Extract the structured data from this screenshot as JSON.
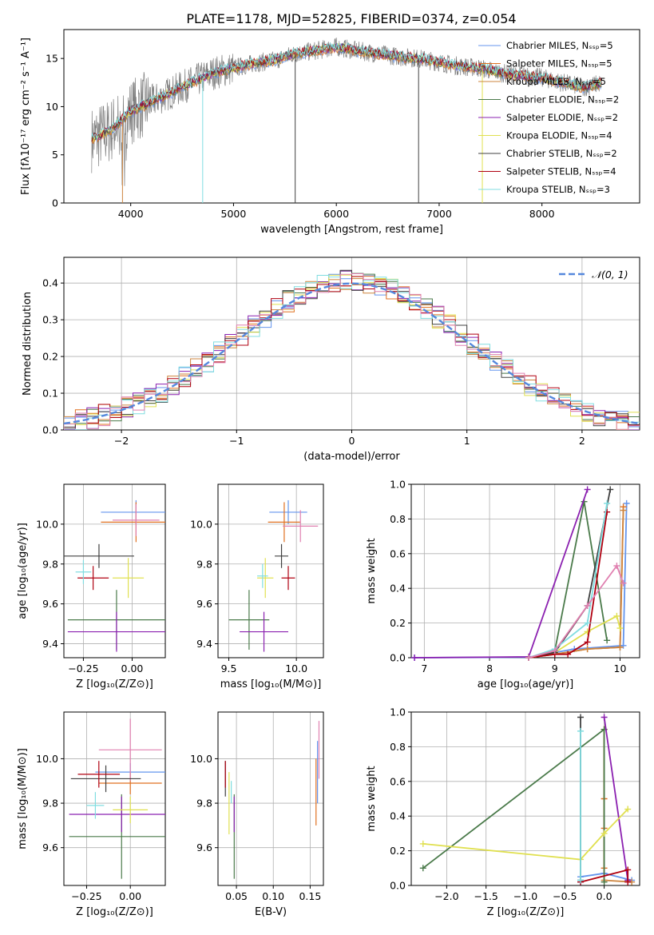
{
  "figure_title": "PLATE=1178, MJD=52825, FIBERID=0374, z=0.054",
  "colors": [
    "#6495ed",
    "#e07020",
    "#cd853f",
    "#4a7a4a",
    "#8b20b0",
    "#e0e050",
    "#404040",
    "#b00010",
    "#80dde0"
  ],
  "chart_data": [
    {
      "id": "spectrum",
      "type": "line",
      "xlabel": "wavelength [Angstrom, rest frame]",
      "ylabel": "Flux [fλ10⁻¹⁷ erg cm⁻² s⁻¹ A⁻¹]",
      "xlim": [
        3350,
        8950
      ],
      "ylim": [
        0,
        18
      ],
      "xticks": [
        4000,
        5000,
        6000,
        7000,
        8000
      ],
      "yticks": [
        0,
        5,
        10,
        15
      ],
      "grid": false,
      "legend_position": "top-right",
      "legend": [
        "Chabrier MILES, Nₛₛₚ=5",
        "Salpeter MILES, Nₛₛₚ=5",
        "Kroupa MILES, Nₛₛₚ=5",
        "Chabrier ELODIE, Nₛₛₚ=2",
        "Salpeter ELODIE, Nₛₛₚ=2",
        "Kroupa ELODIE, Nₛₛₚ=4",
        "Chabrier STELIB, Nₛₛₚ=2",
        "Salpeter STELIB, Nₛₛₚ=4",
        "Kroupa STELIB, Nₛₛₚ=3"
      ],
      "data_x": [
        3600,
        3800,
        4000,
        4200,
        4400,
        4600,
        4800,
        5000,
        5200,
        5400,
        5600,
        5800,
        6000,
        6200,
        6400,
        6600,
        6800,
        7000,
        7200,
        7400,
        7600,
        7800,
        8000,
        8200,
        8400,
        8600,
        8800
      ],
      "data_y": [
        6.5,
        7.5,
        9.5,
        10.5,
        11.5,
        12.5,
        13.5,
        14.0,
        14.5,
        14.8,
        15.5,
        15.8,
        16.2,
        15.8,
        15.5,
        15.2,
        15.0,
        14.6,
        14.2,
        14.0,
        13.5,
        13.2,
        13.0,
        12.5,
        12.0,
        12.5,
        11.5
      ],
      "dips": [
        [
          4700,
          0
        ],
        [
          5600,
          0
        ],
        [
          6800,
          0
        ],
        [
          7420,
          0
        ],
        [
          3920,
          0
        ]
      ]
    },
    {
      "id": "residuals",
      "type": "bar",
      "xlabel": "(data-model)/error",
      "ylabel": "Normed distribution",
      "xlim": [
        -2.5,
        2.5
      ],
      "ylim": [
        0,
        0.47
      ],
      "xticks": [
        -2,
        -1,
        0,
        1,
        2
      ],
      "yticks": [
        0.0,
        0.1,
        0.2,
        0.3,
        0.4
      ],
      "grid": true,
      "legend_position": "top-right",
      "legend": [
        "𝒩(0, 1)"
      ],
      "bin_edges_start": -2.5,
      "bin_width": 0.1
    },
    {
      "id": "age_vs_Z",
      "type": "scatter",
      "xlabel": "Z [log₁₀(Z/Z⊙)]",
      "ylabel": "age  [log₁₀(age/yr)]",
      "xlim": [
        -0.35,
        0.17
      ],
      "ylim": [
        9.33,
        10.2
      ],
      "xticks": [
        -0.25,
        0.0
      ],
      "yticks": [
        9.4,
        9.6,
        9.8,
        10.0
      ],
      "grid": true,
      "points": [
        {
          "x": 0.02,
          "y": 10.06,
          "xerr": 0.18,
          "yerr": 0.06
        },
        {
          "x": 0.02,
          "y": 10.01,
          "xerr": 0.18,
          "yerr": 0.1
        },
        {
          "x": 0.02,
          "y": 10.02,
          "xerr": 0.12,
          "yerr": 0.08
        },
        {
          "x": -0.08,
          "y": 9.52,
          "xerr": 0.25,
          "yerr": 0.15
        },
        {
          "x": -0.08,
          "y": 9.46,
          "xerr": 0.25,
          "yerr": 0.1
        },
        {
          "x": -0.02,
          "y": 9.73,
          "xerr": 0.08,
          "yerr": 0.1
        },
        {
          "x": -0.17,
          "y": 9.84,
          "xerr": 0.18,
          "yerr": 0.06
        },
        {
          "x": -0.2,
          "y": 9.73,
          "xerr": 0.08,
          "yerr": 0.06
        },
        {
          "x": -0.25,
          "y": 9.76,
          "xerr": 0.04,
          "yerr": 0.06
        }
      ]
    },
    {
      "id": "age_vs_mass",
      "type": "scatter",
      "xlabel": "mass [log₁₀(M/M⊙)]",
      "ylabel": "",
      "xlim": [
        9.42,
        10.2
      ],
      "ylim": [
        9.33,
        10.2
      ],
      "xticks": [
        9.5,
        10.0
      ],
      "yticks": [
        9.4,
        9.6,
        9.8,
        10.0
      ],
      "grid": true,
      "points": [
        {
          "x": 9.94,
          "y": 10.06,
          "xerr": 0.14,
          "yerr": 0.06
        },
        {
          "x": 9.91,
          "y": 10.01,
          "xerr": 0.12,
          "yerr": 0.1
        },
        {
          "x": 10.03,
          "y": 9.99,
          "xerr": 0.13,
          "yerr": 0.08
        },
        {
          "x": 9.65,
          "y": 9.52,
          "xerr": 0.15,
          "yerr": 0.15
        },
        {
          "x": 9.76,
          "y": 9.46,
          "xerr": 0.18,
          "yerr": 0.1
        },
        {
          "x": 9.77,
          "y": 9.73,
          "xerr": 0.06,
          "yerr": 0.1
        },
        {
          "x": 9.89,
          "y": 9.84,
          "xerr": 0.05,
          "yerr": 0.06
        },
        {
          "x": 9.94,
          "y": 9.73,
          "xerr": 0.05,
          "yerr": 0.06
        },
        {
          "x": 9.75,
          "y": 9.74,
          "xerr": 0.04,
          "yerr": 0.06
        }
      ]
    },
    {
      "id": "massweight_vs_age",
      "type": "line",
      "xlabel": "age  [log₁₀(age/yr)]",
      "ylabel": "mass weight",
      "xlim": [
        6.8,
        10.3
      ],
      "ylim": [
        0,
        1.0
      ],
      "xticks": [
        7,
        8,
        9,
        10
      ],
      "yticks": [
        0.0,
        0.2,
        0.4,
        0.6,
        0.8,
        1.0
      ],
      "grid": true,
      "series": [
        {
          "x": [
            6.85,
            8.6,
            9.0,
            9.3,
            10.05,
            10.1
          ],
          "y": [
            0,
            0.003,
            0.03,
            0.05,
            0.07,
            0.89
          ]
        },
        {
          "x": [
            8.6,
            9.0,
            9.5,
            10.0,
            10.05
          ],
          "y": [
            0,
            0.02,
            0.05,
            0.06,
            0.87
          ]
        },
        {
          "x": [
            8.6,
            9.0,
            9.5,
            10.0,
            10.05
          ],
          "y": [
            0,
            0.02,
            0.05,
            0.06,
            0.85
          ]
        },
        {
          "x": [
            8.6,
            9.0,
            9.45,
            9.8
          ],
          "y": [
            0,
            0.04,
            0.9,
            0.1
          ]
        },
        {
          "x": [
            6.85,
            8.6,
            9.5
          ],
          "y": [
            0,
            0.005,
            0.97
          ]
        },
        {
          "x": [
            8.6,
            9.0,
            9.5,
            9.95,
            10.0
          ],
          "y": [
            0,
            0.03,
            0.15,
            0.24,
            0.17
          ]
        },
        {
          "x": [
            8.6,
            9.0,
            9.5,
            9.85
          ],
          "y": [
            0,
            0.03,
            0.3,
            0.97
          ]
        },
        {
          "x": [
            8.6,
            9.0,
            9.2,
            9.5,
            9.8
          ],
          "y": [
            0,
            0.02,
            0.02,
            0.09,
            0.84
          ]
        },
        {
          "x": [
            8.6,
            9.0,
            9.5,
            9.8
          ],
          "y": [
            0,
            0.05,
            0.2,
            0.89
          ]
        }
      ],
      "extra_series": {
        "x": [
          8.6,
          9.0,
          9.5,
          9.95,
          10.05
        ],
        "y": [
          0,
          0.04,
          0.3,
          0.53,
          0.43
        ]
      }
    },
    {
      "id": "mass_vs_Z",
      "type": "scatter",
      "xlabel": "Z [log₁₀(Z/Z⊙)]",
      "ylabel": "mass [log₁₀(M/M⊙)]",
      "xlim": [
        -0.38,
        0.2
      ],
      "ylim": [
        9.43,
        10.21
      ],
      "xticks": [
        -0.25,
        0.0
      ],
      "yticks": [
        9.6,
        9.8,
        10.0
      ],
      "grid": true,
      "points": [
        {
          "x": 0.0,
          "y": 9.94,
          "xerr": 0.2,
          "yerr": 0.04
        },
        {
          "x": 0.0,
          "y": 9.89,
          "xerr": 0.18,
          "yerr": 0.05
        },
        {
          "x": 0.0,
          "y": 10.04,
          "xerr": 0.18,
          "yerr": 0.14
        },
        {
          "x": -0.05,
          "y": 9.65,
          "xerr": 0.3,
          "yerr": 0.19
        },
        {
          "x": -0.05,
          "y": 9.75,
          "xerr": 0.3,
          "yerr": 0.08
        },
        {
          "x": 0.0,
          "y": 9.77,
          "xerr": 0.1,
          "yerr": 0.06
        },
        {
          "x": -0.14,
          "y": 9.91,
          "xerr": 0.2,
          "yerr": 0.06
        },
        {
          "x": -0.18,
          "y": 9.93,
          "xerr": 0.12,
          "yerr": 0.06
        },
        {
          "x": -0.2,
          "y": 9.79,
          "xerr": 0.05,
          "yerr": 0.06
        }
      ]
    },
    {
      "id": "mass_vs_ebv",
      "type": "scatter",
      "xlabel": "E(B-V)",
      "ylabel": "",
      "xlim": [
        0.025,
        0.168
      ],
      "ylim": [
        9.43,
        10.21
      ],
      "xticks": [
        0.05,
        0.1,
        0.15
      ],
      "yticks": [
        9.6,
        9.8,
        10.0
      ],
      "grid": true,
      "points": [
        {
          "x": 0.16,
          "y": 9.94,
          "xerr": 0.0,
          "yerr": 0.14
        },
        {
          "x": 0.158,
          "y": 9.85,
          "xerr": 0.0,
          "yerr": 0.15
        },
        {
          "x": 0.162,
          "y": 10.04,
          "xerr": 0.0,
          "yerr": 0.13
        },
        {
          "x": 0.047,
          "y": 9.65,
          "xerr": 0.0,
          "yerr": 0.19
        },
        {
          "x": 0.047,
          "y": 9.75,
          "xerr": 0.0,
          "yerr": 0.08
        },
        {
          "x": 0.04,
          "y": 9.8,
          "xerr": 0.0,
          "yerr": 0.14
        },
        {
          "x": 0.035,
          "y": 9.91,
          "xerr": 0.0,
          "yerr": 0.08
        },
        {
          "x": 0.035,
          "y": 9.93,
          "xerr": 0.0,
          "yerr": 0.06
        },
        {
          "x": 0.043,
          "y": 9.85,
          "xerr": 0.0,
          "yerr": 0.05
        }
      ]
    },
    {
      "id": "massweight_vs_Z",
      "type": "line",
      "xlabel": "Z [log₁₀(Z/Z⊙)]",
      "ylabel": "mass weight",
      "xlim": [
        -2.45,
        0.45
      ],
      "ylim": [
        0,
        1.0
      ],
      "xticks": [
        -2.0,
        -1.5,
        -1.0,
        -0.5,
        0.0
      ],
      "yticks": [
        0.0,
        0.2,
        0.4,
        0.6,
        0.8,
        1.0
      ],
      "grid": true,
      "series": [
        {
          "x": [
            -0.3,
            -0.3,
            0.0,
            0.35
          ],
          "y": [
            0.02,
            0.05,
            0.07,
            0.03
          ]
        },
        {
          "x": [
            0.0,
            0.0,
            0.0,
            0.0
          ],
          "y": [
            0.9,
            0.5,
            0.33,
            0.1
          ]
        },
        {
          "x": [
            0.0,
            0.0,
            0.35
          ],
          "y": [
            0.9,
            0.03,
            0.02
          ]
        },
        {
          "x": [
            -2.3,
            0.0,
            0.0
          ],
          "y": [
            0.1,
            0.9,
            0.02
          ]
        },
        {
          "x": [
            0.0,
            0.3
          ],
          "y": [
            0.97,
            0.03
          ]
        },
        {
          "x": [
            -2.3,
            -0.3,
            0.0,
            0.3
          ],
          "y": [
            0.24,
            0.15,
            0.3,
            0.44
          ]
        },
        {
          "x": [
            -0.3,
            -0.3
          ],
          "y": [
            0.97,
            0.03
          ]
        },
        {
          "x": [
            -0.3,
            0.3,
            0.3
          ],
          "y": [
            0.02,
            0.09,
            0.02
          ]
        },
        {
          "x": [
            -0.3,
            -0.3
          ],
          "y": [
            0.89,
            0.03
          ]
        }
      ]
    }
  ]
}
